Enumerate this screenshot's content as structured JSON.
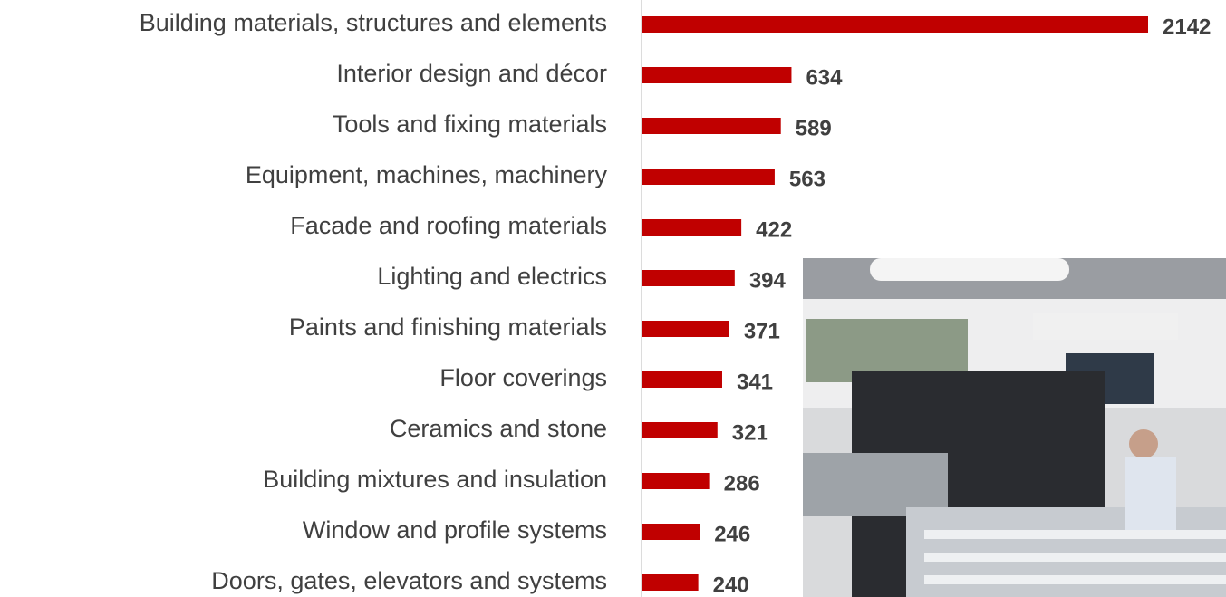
{
  "chart_data": {
    "type": "bar",
    "orientation": "horizontal",
    "categories": [
      "Building materials, structures and elements",
      "Interior design and décor",
      "Tools and fixing materials",
      "Equipment, machines, machinery",
      "Facade and roofing materials",
      "Lighting and electrics",
      "Paints and finishing materials",
      "Floor coverings",
      "Ceramics and stone",
      "Building mixtures and insulation",
      "Window and profile systems",
      "Doors, gates, elevators and systems"
    ],
    "values": [
      2142,
      634,
      589,
      563,
      422,
      394,
      371,
      341,
      321,
      286,
      246,
      240
    ],
    "color": "#c00000"
  }
}
